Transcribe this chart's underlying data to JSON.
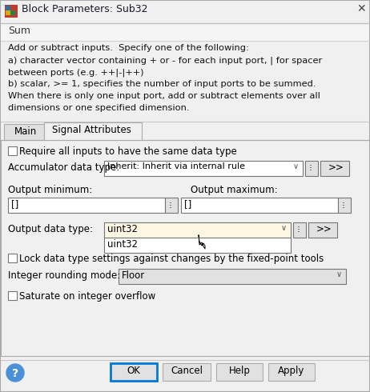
{
  "title": "Block Parameters: Sub32",
  "section_title": "Sum",
  "description_lines": [
    "Add or subtract inputs.  Specify one of the following:",
    "a) character vector containing + or - for each input port, | for spacer",
    "between ports (e.g. ++|-|++)",
    "b) scalar, >= 1, specifies the number of input ports to be summed.",
    "When there is only one input port, add or subtract elements over all",
    "dimensions or one specified dimension."
  ],
  "tab_main": "Main",
  "tab_signal": "Signal Attributes",
  "checkbox1_label": "Require all inputs to have the same data type",
  "accum_label": "Accumulator data type:",
  "accum_value": "Inherit: Inherit via internal rule",
  "out_min_label": "Output minimum:",
  "out_min_value": "[]",
  "out_max_label": "Output maximum:",
  "out_max_value": "[]",
  "out_dtype_label": "Output data type:",
  "out_dtype_value": "uint32",
  "dropdown_item": "uint32",
  "lock_label": "Lock data type settings against changes by the fixed-point tools",
  "round_label": "Integer rounding mode:",
  "round_value": "Floor",
  "saturate_label": "Saturate on integer overflow",
  "btn_ok": "OK",
  "btn_cancel": "Cancel",
  "btn_help": "Help",
  "btn_apply": "Apply",
  "bg_color": "#f0f0f0",
  "content_bg": "#f0f0f0",
  "white": "#ffffff",
  "border_color": "#aaaaaa",
  "dark_border": "#767676",
  "title_bar_bg": "#f0f0f0",
  "dropdown_bg": "#fdf6e3",
  "btn_bg": "#e1e1e1",
  "btn_border": "#adadad",
  "ok_border": "#0078d7",
  "text_color": "#000000",
  "inactive_tab_bg": "#e0e0e0",
  "separator_color": "#c8c8c8"
}
